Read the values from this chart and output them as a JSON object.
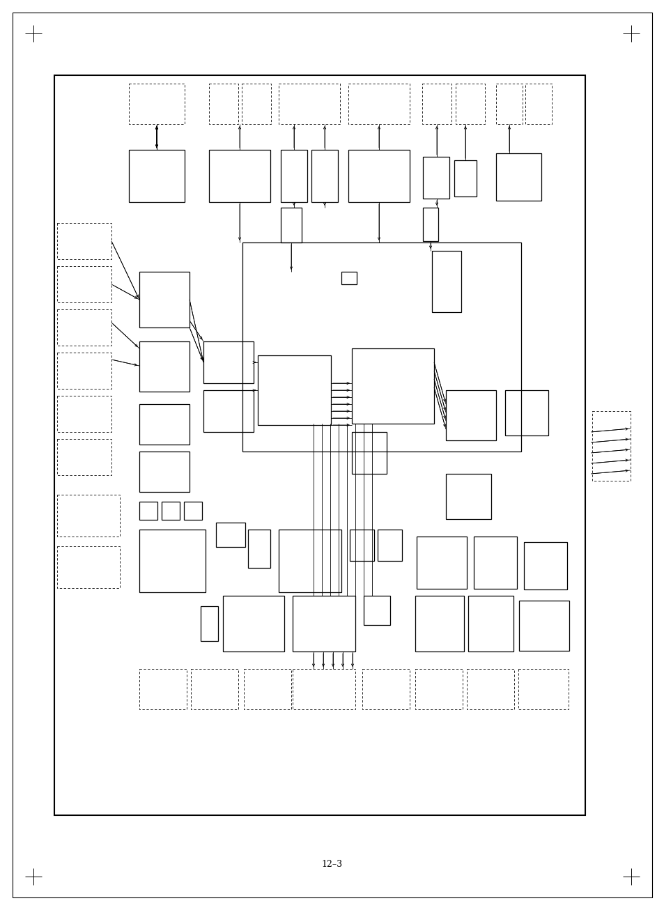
{
  "bg_color": "#ffffff",
  "line_color": "#000000",
  "caption": "12–3",
  "figsize": [
    9.54,
    13.06
  ],
  "dpi": 100
}
